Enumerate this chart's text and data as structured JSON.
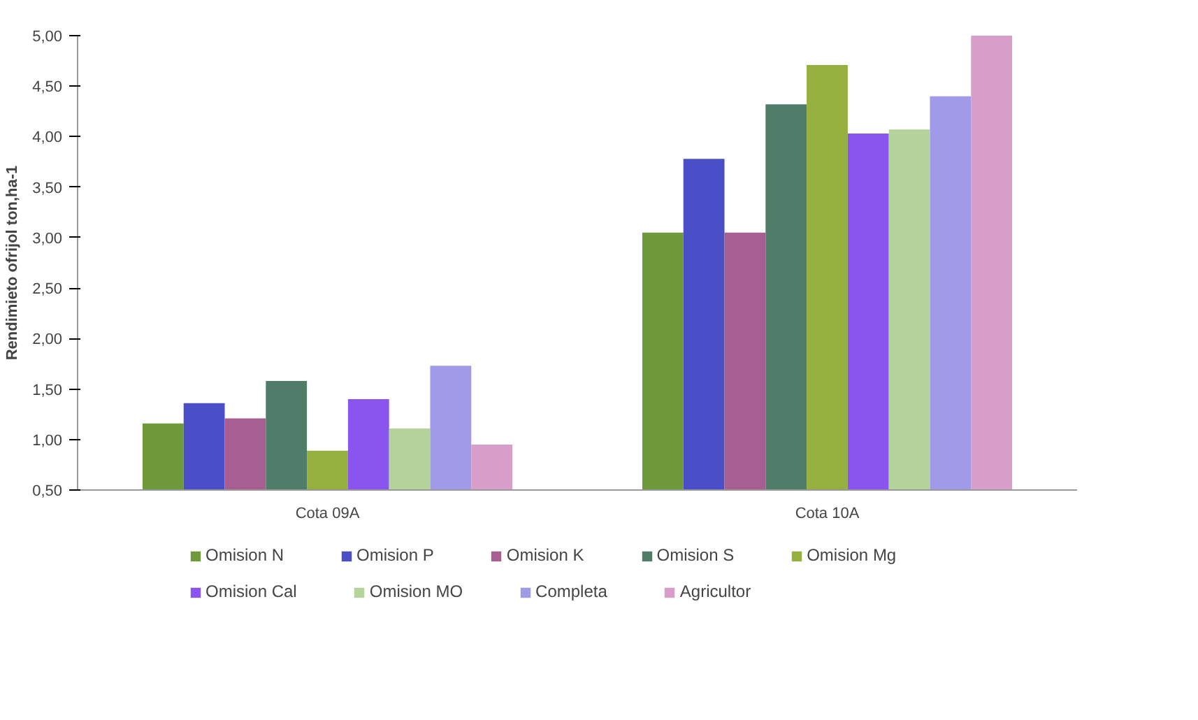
{
  "chart_data": {
    "type": "bar",
    "ylabel": "Rendimieto ofrijol ton,ha-1",
    "categories": [
      "Cota 09A",
      "Cota 10A"
    ],
    "series": [
      {
        "name": "Omision N",
        "color": "#6e9a3c",
        "values": [
          1.16,
          3.05
        ]
      },
      {
        "name": "Omision P",
        "color": "#4a4fc8",
        "values": [
          1.36,
          3.78
        ]
      },
      {
        "name": "Omision K",
        "color": "#a65f90",
        "values": [
          1.21,
          3.05
        ]
      },
      {
        "name": "Omision S",
        "color": "#4f7d6a",
        "values": [
          1.58,
          4.32
        ]
      },
      {
        "name": "Omision Mg",
        "color": "#95b03e",
        "values": [
          0.89,
          4.71
        ]
      },
      {
        "name": "Omision Cal",
        "color": "#8a55ee",
        "values": [
          1.4,
          4.03
        ]
      },
      {
        "name": "Omision MO",
        "color": "#b4d49c",
        "values": [
          1.11,
          4.07
        ]
      },
      {
        "name": "Completa",
        "color": "#a09ae8",
        "values": [
          1.73,
          4.4
        ]
      },
      {
        "name": "Agricultor",
        "color": "#d69ec8",
        "values": [
          0.95,
          5.0
        ]
      }
    ],
    "ylim": [
      0.5,
      5.0
    ],
    "yticks": [
      {
        "value": 0.5,
        "label": "0,50"
      },
      {
        "value": 1.0,
        "label": "1,00"
      },
      {
        "value": 1.5,
        "label": "1,50"
      },
      {
        "value": 2.0,
        "label": "2,00"
      },
      {
        "value": 2.5,
        "label": "2,50"
      },
      {
        "value": 3.0,
        "label": "3,00"
      },
      {
        "value": 3.5,
        "label": "3,50"
      },
      {
        "value": 4.0,
        "label": "4,00"
      },
      {
        "value": 4.5,
        "label": "4,50"
      },
      {
        "value": 5.0,
        "label": "5,00"
      }
    ],
    "grid": false,
    "legend": "bottom"
  }
}
